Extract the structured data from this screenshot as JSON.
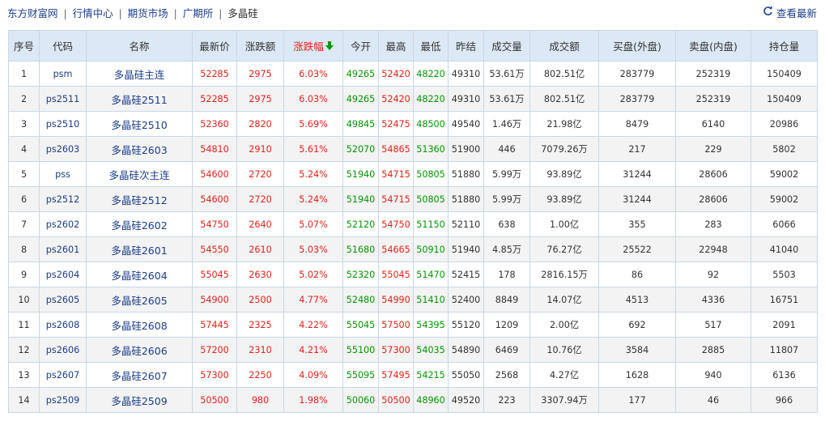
{
  "breadcrumb": {
    "items": [
      "东方财富网",
      "行情中心",
      "期货市场",
      "广期所"
    ],
    "current": "多晶硅",
    "separator": "|"
  },
  "refresh": {
    "label": "查看最新",
    "icon": "refresh-icon"
  },
  "table": {
    "columns": [
      "序号",
      "代码",
      "名称",
      "最新价",
      "涨跌额",
      "涨跌幅",
      "今开",
      "最高",
      "最低",
      "昨结",
      "成交量",
      "成交额",
      "买盘(外盘)",
      "卖盘(内盘)",
      "持仓量"
    ],
    "sorted_column": "涨跌幅",
    "sort_icon": "sort-down-arrow-icon",
    "colors": {
      "up": "#e2231a",
      "down": "#009900",
      "link": "#1a3e8a",
      "header_bg": "#dbe8f5"
    },
    "rows": [
      [
        "1",
        "psm",
        "多晶硅主连",
        "52285",
        "2975",
        "6.03%",
        "49265",
        "52420",
        "48220",
        "49310",
        "53.61万",
        "802.51亿",
        "283779",
        "252319",
        "150409"
      ],
      [
        "2",
        "ps2511",
        "多晶硅2511",
        "52285",
        "2975",
        "6.03%",
        "49265",
        "52420",
        "48220",
        "49310",
        "53.61万",
        "802.51亿",
        "283779",
        "252319",
        "150409"
      ],
      [
        "3",
        "ps2510",
        "多晶硅2510",
        "52360",
        "2820",
        "5.69%",
        "49845",
        "52475",
        "48500",
        "49540",
        "1.46万",
        "21.98亿",
        "8479",
        "6140",
        "20986"
      ],
      [
        "4",
        "ps2603",
        "多晶硅2603",
        "54810",
        "2910",
        "5.61%",
        "52070",
        "54865",
        "51360",
        "51900",
        "446",
        "7079.26万",
        "217",
        "229",
        "5802"
      ],
      [
        "5",
        "pss",
        "多晶硅次主连",
        "54600",
        "2720",
        "5.24%",
        "51940",
        "54715",
        "50805",
        "51880",
        "5.99万",
        "93.89亿",
        "31244",
        "28606",
        "59002"
      ],
      [
        "6",
        "ps2512",
        "多晶硅2512",
        "54600",
        "2720",
        "5.24%",
        "51940",
        "54715",
        "50805",
        "51880",
        "5.99万",
        "93.89亿",
        "31244",
        "28606",
        "59002"
      ],
      [
        "7",
        "ps2602",
        "多晶硅2602",
        "54750",
        "2640",
        "5.07%",
        "52120",
        "54750",
        "51150",
        "52110",
        "638",
        "1.00亿",
        "355",
        "283",
        "6066"
      ],
      [
        "8",
        "ps2601",
        "多晶硅2601",
        "54550",
        "2610",
        "5.03%",
        "51680",
        "54665",
        "50910",
        "51940",
        "4.85万",
        "76.27亿",
        "25522",
        "22948",
        "41040"
      ],
      [
        "9",
        "ps2604",
        "多晶硅2604",
        "55045",
        "2630",
        "5.02%",
        "52320",
        "55045",
        "51470",
        "52415",
        "178",
        "2816.15万",
        "86",
        "92",
        "5503"
      ],
      [
        "10",
        "ps2605",
        "多晶硅2605",
        "54900",
        "2500",
        "4.77%",
        "52480",
        "54990",
        "51410",
        "52400",
        "8849",
        "14.07亿",
        "4513",
        "4336",
        "16751"
      ],
      [
        "11",
        "ps2608",
        "多晶硅2608",
        "57445",
        "2325",
        "4.22%",
        "55045",
        "57500",
        "54395",
        "55120",
        "1209",
        "2.00亿",
        "692",
        "517",
        "2091"
      ],
      [
        "12",
        "ps2606",
        "多晶硅2606",
        "57200",
        "2310",
        "4.21%",
        "55100",
        "57300",
        "54035",
        "54890",
        "6469",
        "10.76亿",
        "3584",
        "2885",
        "11807"
      ],
      [
        "13",
        "ps2607",
        "多晶硅2607",
        "57300",
        "2250",
        "4.09%",
        "55095",
        "57495",
        "54215",
        "55050",
        "2568",
        "4.27亿",
        "1628",
        "940",
        "6136"
      ],
      [
        "14",
        "ps2509",
        "多晶硅2509",
        "50500",
        "980",
        "1.98%",
        "50060",
        "50500",
        "48960",
        "49520",
        "223",
        "3307.94万",
        "177",
        "46",
        "966"
      ]
    ]
  }
}
